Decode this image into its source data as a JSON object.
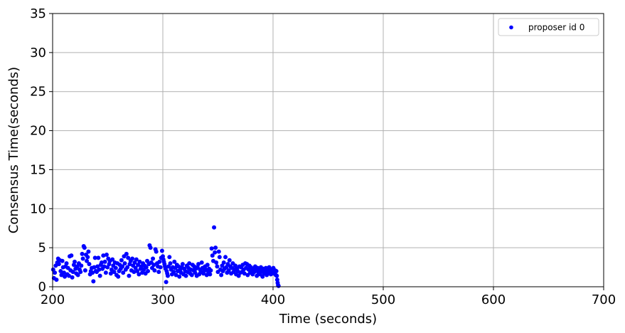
{
  "chart_data": {
    "type": "scatter",
    "xlabel": "Time (seconds)",
    "ylabel": "Consensus Time(seconds)",
    "xlim": [
      200,
      700
    ],
    "ylim": [
      0,
      35
    ],
    "xticks": [
      "200",
      "300",
      "400",
      "500",
      "600",
      "700"
    ],
    "yticks": [
      "0",
      "5",
      "10",
      "15",
      "20",
      "25",
      "30",
      "35"
    ],
    "grid": true,
    "legend_position": "top-right",
    "series": [
      {
        "name": "proposer id 0",
        "color": "#0000ff",
        "points": [
          [
            200.5,
            2.2
          ],
          [
            201.2,
            1.1
          ],
          [
            202.0,
            1.8
          ],
          [
            202.8,
            2.7
          ],
          [
            203.5,
            0.9
          ],
          [
            204.2,
            3.1
          ],
          [
            205.0,
            3.6
          ],
          [
            205.7,
            2.9
          ],
          [
            206.5,
            3.4
          ],
          [
            207.3,
            2.0
          ],
          [
            208.0,
            1.5
          ],
          [
            208.8,
            3.3
          ],
          [
            209.5,
            2.5
          ],
          [
            210.3,
            1.8
          ],
          [
            211.0,
            1.3
          ],
          [
            211.8,
            2.6
          ],
          [
            212.6,
            3.0
          ],
          [
            213.3,
            1.6
          ],
          [
            214.0,
            2.4
          ],
          [
            214.8,
            1.4
          ],
          [
            215.5,
            3.9
          ],
          [
            216.3,
            2.1
          ],
          [
            217.0,
            4.0
          ],
          [
            217.8,
            1.2
          ],
          [
            218.5,
            1.9
          ],
          [
            219.3,
            2.8
          ],
          [
            220.0,
            3.2
          ],
          [
            220.8,
            2.3
          ],
          [
            221.5,
            1.7
          ],
          [
            222.3,
            2.6
          ],
          [
            223.0,
            1.5
          ],
          [
            223.8,
            3.0
          ],
          [
            224.5,
            2.2
          ],
          [
            225.3,
            1.9
          ],
          [
            226.0,
            2.7
          ],
          [
            226.8,
            4.2
          ],
          [
            227.5,
            3.6
          ],
          [
            228.2,
            5.2
          ],
          [
            228.9,
            5.0
          ],
          [
            229.6,
            2.1
          ],
          [
            230.3,
            4.1
          ],
          [
            231.0,
            3.3
          ],
          [
            231.8,
            3.8
          ],
          [
            232.5,
            4.5
          ],
          [
            233.2,
            2.9
          ],
          [
            234.0,
            1.6
          ],
          [
            234.7,
            2.0
          ],
          [
            235.5,
            2.4
          ],
          [
            236.2,
            1.8
          ],
          [
            237.0,
            0.7
          ],
          [
            237.7,
            2.5
          ],
          [
            238.5,
            3.7
          ],
          [
            239.2,
            2.0
          ],
          [
            240.0,
            1.9
          ],
          [
            240.7,
            2.6
          ],
          [
            241.5,
            3.7
          ],
          [
            242.2,
            2.2
          ],
          [
            243.0,
            1.4
          ],
          [
            243.7,
            2.8
          ],
          [
            244.5,
            3.1
          ],
          [
            245.2,
            2.3
          ],
          [
            246.0,
            4.0
          ],
          [
            246.8,
            2.6
          ],
          [
            247.5,
            3.2
          ],
          [
            248.3,
            1.8
          ],
          [
            249.0,
            4.1
          ],
          [
            249.8,
            2.5
          ],
          [
            250.5,
            3.6
          ],
          [
            251.3,
            2.9
          ],
          [
            252.0,
            3.3
          ],
          [
            252.8,
            1.7
          ],
          [
            253.5,
            2.2
          ],
          [
            254.3,
            3.5
          ],
          [
            255.0,
            2.7
          ],
          [
            255.8,
            1.9
          ],
          [
            256.5,
            3.1
          ],
          [
            257.3,
            2.4
          ],
          [
            258.0,
            1.5
          ],
          [
            258.8,
            3.0
          ],
          [
            259.5,
            1.3
          ],
          [
            260.3,
            2.0
          ],
          [
            261.0,
            2.8
          ],
          [
            261.8,
            2.3
          ],
          [
            262.5,
            3.4
          ],
          [
            263.3,
            2.6
          ],
          [
            264.0,
            1.8
          ],
          [
            264.8,
            3.9
          ],
          [
            265.5,
            3.0
          ],
          [
            266.3,
            2.2
          ],
          [
            267.0,
            4.2
          ],
          [
            267.8,
            2.5
          ],
          [
            268.5,
            3.7
          ],
          [
            269.3,
            1.4
          ],
          [
            270.0,
            2.9
          ],
          [
            270.8,
            3.3
          ],
          [
            271.5,
            2.1
          ],
          [
            272.3,
            3.6
          ],
          [
            273.0,
            2.7
          ],
          [
            273.8,
            1.9
          ],
          [
            274.5,
            3.1
          ],
          [
            275.3,
            2.4
          ],
          [
            276.0,
            3.5
          ],
          [
            276.8,
            2.0
          ],
          [
            277.5,
            2.8
          ],
          [
            278.3,
            1.6
          ],
          [
            279.0,
            3.2
          ],
          [
            279.8,
            2.3
          ],
          [
            280.5,
            2.6
          ],
          [
            281.3,
            1.8
          ],
          [
            282.0,
            3.0
          ],
          [
            282.8,
            2.2
          ],
          [
            283.5,
            2.7
          ],
          [
            284.3,
            1.7
          ],
          [
            285.0,
            2.5
          ],
          [
            285.8,
            3.3
          ],
          [
            286.5,
            2.0
          ],
          [
            287.3,
            2.9
          ],
          [
            288.0,
            5.3
          ],
          [
            288.8,
            5.0
          ],
          [
            289.5,
            3.1
          ],
          [
            290.3,
            2.4
          ],
          [
            291.0,
            3.6
          ],
          [
            291.8,
            2.8
          ],
          [
            292.5,
            2.1
          ],
          [
            293.3,
            4.8
          ],
          [
            294.0,
            4.5
          ],
          [
            294.8,
            3.0
          ],
          [
            295.5,
            2.6
          ],
          [
            296.3,
            1.9
          ],
          [
            297.0,
            3.2
          ],
          [
            297.8,
            2.5
          ],
          [
            298.5,
            3.7
          ],
          [
            299.3,
            4.6
          ],
          [
            300.0,
            3.9
          ],
          [
            300.5,
            3.5
          ],
          [
            301.0,
            3.2
          ],
          [
            301.5,
            2.9
          ],
          [
            302.0,
            2.6
          ],
          [
            302.5,
            2.3
          ],
          [
            303.0,
            0.6
          ],
          [
            303.5,
            2.0
          ],
          [
            304.0,
            1.7
          ],
          [
            304.5,
            1.4
          ],
          [
            305.3,
            2.6
          ],
          [
            306.0,
            3.8
          ],
          [
            306.8,
            3.0
          ],
          [
            307.5,
            2.2
          ],
          [
            308.3,
            1.6
          ],
          [
            309.0,
            2.5
          ],
          [
            309.8,
            1.9
          ],
          [
            310.5,
            3.2
          ],
          [
            311.3,
            2.4
          ],
          [
            312.0,
            1.5
          ],
          [
            312.8,
            2.8
          ],
          [
            313.5,
            2.0
          ],
          [
            314.3,
            2.6
          ],
          [
            315.0,
            1.3
          ],
          [
            315.8,
            2.2
          ],
          [
            316.5,
            1.8
          ],
          [
            317.3,
            2.5
          ],
          [
            318.0,
            2.9
          ],
          [
            318.8,
            1.6
          ],
          [
            319.5,
            2.3
          ],
          [
            320.3,
            2.0
          ],
          [
            321.0,
            1.4
          ],
          [
            321.8,
            2.7
          ],
          [
            322.5,
            1.9
          ],
          [
            323.3,
            2.4
          ],
          [
            324.0,
            3.0
          ],
          [
            324.8,
            1.7
          ],
          [
            325.5,
            2.2
          ],
          [
            326.3,
            1.5
          ],
          [
            327.0,
            2.8
          ],
          [
            327.8,
            2.1
          ],
          [
            328.5,
            2.6
          ],
          [
            329.3,
            1.8
          ],
          [
            330.0,
            2.3
          ],
          [
            330.8,
            1.4
          ],
          [
            331.5,
            2.5
          ],
          [
            332.3,
            2.9
          ],
          [
            333.0,
            1.6
          ],
          [
            333.8,
            2.2
          ],
          [
            334.5,
            1.9
          ],
          [
            335.3,
            3.1
          ],
          [
            336.0,
            2.4
          ],
          [
            336.8,
            1.7
          ],
          [
            337.5,
            2.0
          ],
          [
            338.3,
            2.6
          ],
          [
            339.0,
            2.2
          ],
          [
            339.8,
            1.5
          ],
          [
            340.5,
            2.8
          ],
          [
            341.3,
            1.9
          ],
          [
            342.0,
            2.3
          ],
          [
            342.8,
            1.6
          ],
          [
            343.5,
            2.1
          ],
          [
            344.3,
            4.9
          ],
          [
            345.0,
            4.0
          ],
          [
            345.8,
            3.3
          ],
          [
            346.5,
            7.6
          ],
          [
            347.2,
            4.4
          ],
          [
            347.8,
            5.0
          ],
          [
            348.5,
            3.1
          ],
          [
            349.3,
            2.6
          ],
          [
            350.0,
            1.9
          ],
          [
            350.8,
            4.5
          ],
          [
            351.5,
            3.8
          ],
          [
            352.3,
            2.2
          ],
          [
            353.0,
            1.5
          ],
          [
            353.8,
            2.7
          ],
          [
            354.5,
            2.0
          ],
          [
            355.3,
            3.1
          ],
          [
            356.0,
            2.3
          ],
          [
            356.8,
            3.8
          ],
          [
            357.5,
            2.5
          ],
          [
            358.3,
            1.8
          ],
          [
            359.0,
            2.9
          ],
          [
            359.8,
            2.1
          ],
          [
            360.5,
            3.4
          ],
          [
            361.3,
            2.6
          ],
          [
            362.0,
            1.7
          ],
          [
            362.8,
            2.4
          ],
          [
            363.5,
            3.0
          ],
          [
            364.3,
            1.9
          ],
          [
            365.0,
            2.2
          ],
          [
            365.8,
            2.7
          ],
          [
            366.5,
            1.6
          ],
          [
            367.3,
            2.3
          ],
          [
            368.0,
            2.0
          ],
          [
            368.8,
            1.4
          ],
          [
            369.5,
            2.6
          ],
          [
            370.3,
            1.8
          ],
          [
            371.0,
            2.5
          ],
          [
            371.8,
            1.9
          ],
          [
            372.5,
            2.8
          ],
          [
            373.3,
            2.2
          ],
          [
            374.0,
            1.7
          ],
          [
            374.8,
            3.0
          ],
          [
            375.5,
            2.4
          ],
          [
            376.3,
            2.9
          ],
          [
            377.0,
            1.5
          ],
          [
            377.8,
            2.2
          ],
          [
            378.5,
            2.7
          ],
          [
            379.3,
            1.8
          ],
          [
            380.0,
            2.5
          ],
          [
            380.8,
            2.0
          ],
          [
            381.5,
            1.6
          ],
          [
            382.3,
            2.3
          ],
          [
            383.0,
            1.9
          ],
          [
            383.8,
            2.6
          ],
          [
            384.5,
            2.1
          ],
          [
            385.3,
            1.4
          ],
          [
            386.0,
            2.4
          ],
          [
            386.8,
            1.8
          ],
          [
            387.5,
            2.2
          ],
          [
            388.3,
            1.6
          ],
          [
            389.0,
            2.5
          ],
          [
            389.8,
            2.0
          ],
          [
            390.5,
            1.3
          ],
          [
            391.3,
            2.3
          ],
          [
            392.0,
            1.7
          ],
          [
            392.8,
            1.9
          ],
          [
            393.5,
            2.4
          ],
          [
            394.3,
            1.5
          ],
          [
            395.0,
            2.1
          ],
          [
            395.8,
            1.8
          ],
          [
            396.5,
            2.5
          ],
          [
            397.3,
            2.0
          ],
          [
            398.0,
            1.6
          ],
          [
            398.8,
            2.2
          ],
          [
            399.5,
            1.9
          ],
          [
            400.3,
            2.4
          ],
          [
            401.0,
            1.7
          ],
          [
            401.8,
            2.1
          ],
          [
            402.5,
            1.5
          ],
          [
            403.0,
            2.0
          ],
          [
            403.4,
            1.4
          ],
          [
            403.8,
            0.9
          ],
          [
            404.2,
            0.5
          ],
          [
            404.6,
            0.2
          ],
          [
            405.0,
            0.1
          ]
        ]
      }
    ]
  }
}
